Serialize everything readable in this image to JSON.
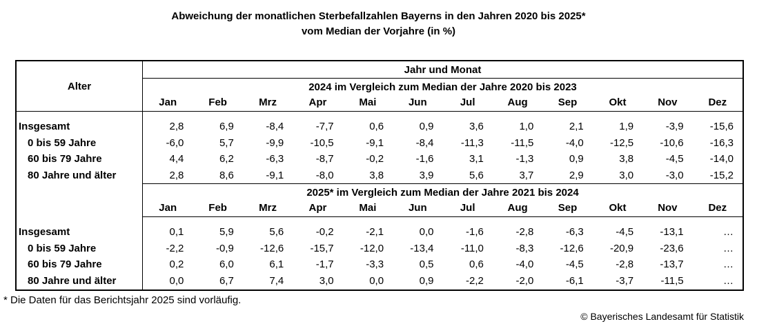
{
  "title": {
    "line1": "Abweichung der monatlichen Sterbefallzahlen Bayerns in den Jahren 2020 bis 2025*",
    "line2": "vom Median der Vorjahre (in %)"
  },
  "table": {
    "corner_header": "Alter",
    "top_header": "Jahr und Monat",
    "months": [
      "Jan",
      "Feb",
      "Mrz",
      "Apr",
      "Mai",
      "Jun",
      "Jul",
      "Aug",
      "Sep",
      "Okt",
      "Nov",
      "Dez"
    ],
    "blocks": [
      {
        "header": "2024 im Vergleich zum Median der Jahre 2020 bis 2023",
        "rows": [
          {
            "label": "Insgesamt",
            "indent": false,
            "values": [
              "2,8",
              "6,9",
              "-8,4",
              "-7,7",
              "0,6",
              "0,9",
              "3,6",
              "1,0",
              "2,1",
              "1,9",
              "-3,9",
              "-15,6"
            ]
          },
          {
            "label": "0 bis 59 Jahre",
            "indent": true,
            "values": [
              "-6,0",
              "5,7",
              "-9,9",
              "-10,5",
              "-9,1",
              "-8,4",
              "-11,3",
              "-11,5",
              "-4,0",
              "-12,5",
              "-10,6",
              "-16,3"
            ]
          },
          {
            "label": "60 bis 79 Jahre",
            "indent": true,
            "values": [
              "4,4",
              "6,2",
              "-6,3",
              "-8,7",
              "-0,2",
              "-1,6",
              "3,1",
              "-1,3",
              "0,9",
              "3,8",
              "-4,5",
              "-14,0"
            ]
          },
          {
            "label": "80 Jahre und älter",
            "indent": true,
            "values": [
              "2,8",
              "8,6",
              "-9,1",
              "-8,0",
              "3,8",
              "3,9",
              "5,6",
              "3,7",
              "2,9",
              "3,0",
              "-3,0",
              "-15,2"
            ]
          }
        ]
      },
      {
        "header": "2025* im Vergleich zum Median der Jahre 2021 bis 2024",
        "rows": [
          {
            "label": "Insgesamt",
            "indent": false,
            "values": [
              "0,1",
              "5,9",
              "5,6",
              "-0,2",
              "-2,1",
              "0,0",
              "-1,6",
              "-2,8",
              "-6,3",
              "-4,5",
              "-13,1",
              "…"
            ]
          },
          {
            "label": "0 bis 59 Jahre",
            "indent": true,
            "values": [
              "-2,2",
              "-0,9",
              "-12,6",
              "-15,7",
              "-12,0",
              "-13,4",
              "-11,0",
              "-8,3",
              "-12,6",
              "-20,9",
              "-23,6",
              "…"
            ]
          },
          {
            "label": "60 bis 79 Jahre",
            "indent": true,
            "values": [
              "0,2",
              "6,0",
              "6,1",
              "-1,7",
              "-3,3",
              "0,5",
              "0,6",
              "-4,0",
              "-4,5",
              "-2,8",
              "-13,7",
              "…"
            ]
          },
          {
            "label": "80 Jahre und älter",
            "indent": true,
            "values": [
              "0,0",
              "6,7",
              "7,4",
              "3,0",
              "0,0",
              "0,9",
              "-2,2",
              "-2,0",
              "-6,1",
              "-3,7",
              "-11,5",
              "…"
            ]
          }
        ]
      }
    ]
  },
  "footnote": "* Die Daten für das Berichtsjahr 2025 sind vorläufig.",
  "copyright": "© Bayerisches Landesamt für Statistik"
}
